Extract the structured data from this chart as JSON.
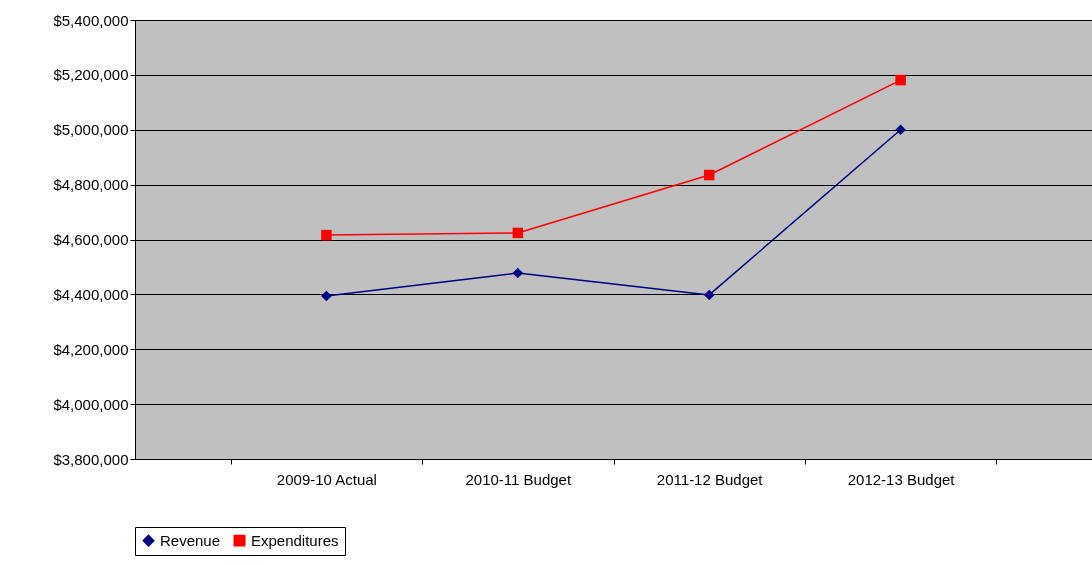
{
  "chart_data": {
    "type": "line",
    "categories": [
      "2009-10 Actual",
      "2010-11 Budget",
      "2011-12 Budget",
      "2012-13 Budget"
    ],
    "series": [
      {
        "name": "Revenue",
        "color": "#000080",
        "marker": "diamond",
        "values": [
          4394000,
          4478000,
          4398000,
          5000000
        ]
      },
      {
        "name": "Expenditures",
        "color": "#ff0000",
        "marker": "square",
        "values": [
          4616000,
          4624000,
          4835000,
          5181000
        ]
      }
    ],
    "ylim": [
      3800000,
      5400000
    ],
    "yticks": [
      {
        "value": 3800000,
        "label": "$3,800,000"
      },
      {
        "value": 4000000,
        "label": "$4,000,000"
      },
      {
        "value": 4200000,
        "label": "$4,200,000"
      },
      {
        "value": 4400000,
        "label": "$4,400,000"
      },
      {
        "value": 4600000,
        "label": "$4,600,000"
      },
      {
        "value": 4800000,
        "label": "$4,800,000"
      },
      {
        "value": 5000000,
        "label": "$5,000,000"
      },
      {
        "value": 5200000,
        "label": "$5,200,000"
      },
      {
        "value": 5400000,
        "label": "$5,400,000"
      }
    ],
    "grid": "y",
    "legend": "bottom"
  }
}
